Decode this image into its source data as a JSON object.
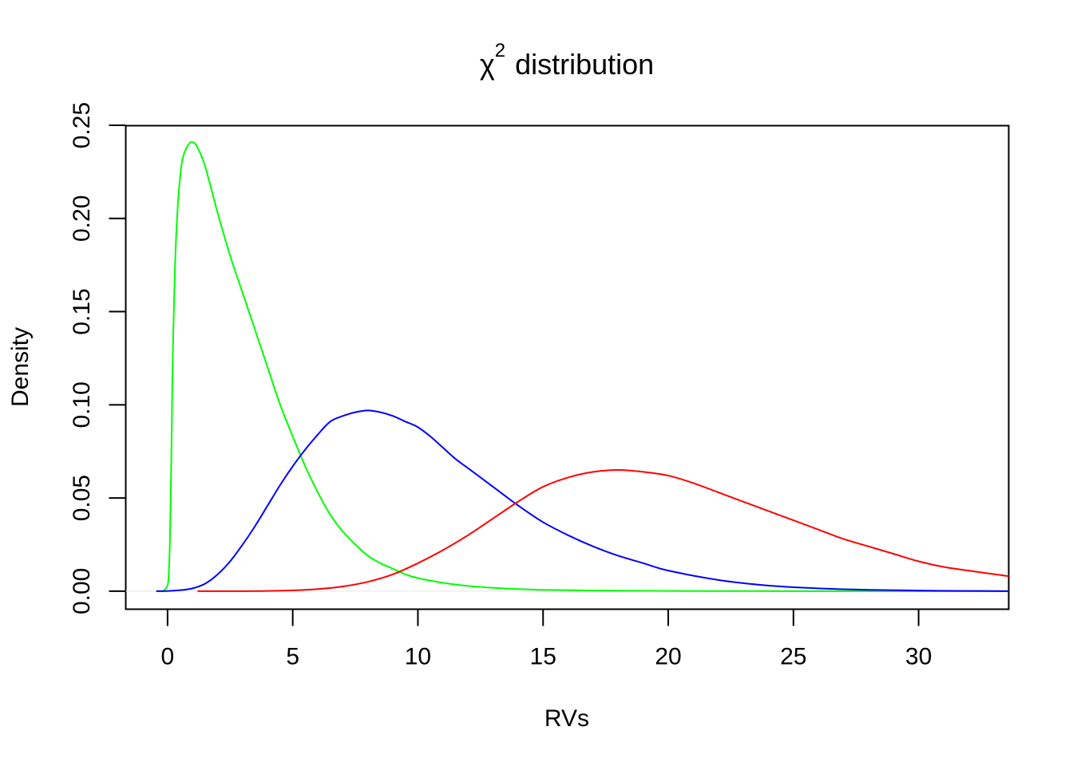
{
  "chart_data": {
    "type": "line",
    "title": {
      "symbol": "χ",
      "superscript": "2",
      "text": "distribution"
    },
    "xlabel": "RVs",
    "ylabel": "Density",
    "xlim": [
      -1.67,
      33.6
    ],
    "ylim": [
      -0.0097,
      0.2498
    ],
    "x_ticks": [
      0,
      5,
      10,
      15,
      20,
      25,
      30
    ],
    "y_ticks": [
      0.0,
      0.05,
      0.1,
      0.15,
      0.2,
      0.25
    ],
    "x_tick_labels": [
      "0",
      "5",
      "10",
      "15",
      "20",
      "25",
      "30"
    ],
    "y_tick_labels": [
      "0.00",
      "0.05",
      "0.10",
      "0.15",
      "0.20",
      "0.25"
    ],
    "grid": false,
    "legend": "none",
    "series": [
      {
        "color": "#00ff00",
        "x": [
          -0.45,
          -0.2,
          0,
          0.05,
          0.1,
          0.15,
          0.2,
          0.3,
          0.4,
          0.5,
          0.6,
          0.8,
          1.0,
          1.2,
          1.5,
          2.0,
          2.5,
          3.0,
          3.5,
          4.0,
          4.5,
          5.0,
          5.5,
          6.0,
          6.5,
          7.0,
          7.5,
          8.0,
          8.5,
          9.0,
          9.5,
          10.0,
          11.0,
          12.0,
          13.0,
          14.0,
          15.0,
          17.0,
          20.0,
          25.0,
          30.0,
          33.6
        ],
        "y": [
          0.0,
          0.0,
          0.003,
          0.01,
          0.03,
          0.07,
          0.12,
          0.175,
          0.205,
          0.222,
          0.232,
          0.239,
          0.241,
          0.238,
          0.228,
          0.203,
          0.18,
          0.16,
          0.14,
          0.12,
          0.1,
          0.083,
          0.067,
          0.053,
          0.041,
          0.032,
          0.025,
          0.019,
          0.015,
          0.012,
          0.009,
          0.007,
          0.0045,
          0.0028,
          0.0018,
          0.0011,
          0.0007,
          0.0003,
          0.0001,
          0.0,
          0.0,
          0.0
        ],
        "label": ""
      },
      {
        "color": "#0000ff",
        "x": [
          -0.45,
          0,
          0.5,
          1.0,
          1.5,
          2.0,
          2.5,
          3.0,
          3.5,
          4.0,
          4.5,
          5.0,
          5.5,
          6.0,
          6.5,
          7.0,
          7.5,
          8.0,
          8.5,
          9.0,
          9.5,
          10.0,
          10.5,
          11.0,
          11.5,
          12.0,
          13.0,
          14.0,
          15.0,
          16.0,
          17.0,
          18.0,
          19.0,
          20.0,
          22.0,
          24.0,
          26.0,
          28.0,
          30.0,
          32.0,
          33.6
        ],
        "y": [
          0.0,
          0.0001,
          0.0005,
          0.0015,
          0.004,
          0.009,
          0.016,
          0.025,
          0.035,
          0.046,
          0.057,
          0.067,
          0.076,
          0.084,
          0.091,
          0.094,
          0.096,
          0.097,
          0.096,
          0.094,
          0.091,
          0.088,
          0.083,
          0.077,
          0.071,
          0.066,
          0.056,
          0.046,
          0.037,
          0.03,
          0.024,
          0.019,
          0.015,
          0.011,
          0.006,
          0.003,
          0.0015,
          0.0007,
          0.0003,
          0.0001,
          0.0
        ],
        "label": ""
      },
      {
        "color": "#ff0000",
        "x": [
          1.2,
          3.0,
          4.0,
          5.0,
          6.0,
          7.0,
          8.0,
          9.0,
          10.0,
          11.0,
          12.0,
          13.0,
          14.0,
          15.0,
          16.0,
          17.0,
          18.0,
          19.0,
          20.0,
          21.0,
          22.0,
          23.0,
          24.0,
          25.0,
          26.0,
          27.0,
          28.0,
          29.0,
          30.0,
          31.0,
          32.0,
          33.6
        ],
        "y": [
          0.0,
          0.0,
          0.0001,
          0.0004,
          0.0011,
          0.0025,
          0.005,
          0.009,
          0.015,
          0.022,
          0.03,
          0.039,
          0.048,
          0.056,
          0.061,
          0.064,
          0.065,
          0.064,
          0.062,
          0.058,
          0.053,
          0.048,
          0.043,
          0.038,
          0.033,
          0.028,
          0.024,
          0.02,
          0.016,
          0.013,
          0.011,
          0.008
        ],
        "label": ""
      }
    ]
  }
}
